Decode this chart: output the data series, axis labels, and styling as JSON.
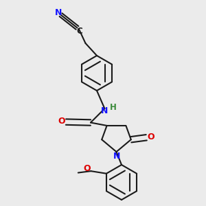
{
  "background_color": "#ebebeb",
  "bond_color": "#1a1a1a",
  "nitrogen_color": "#1414ff",
  "oxygen_color": "#dd0000",
  "hydrogen_color": "#3a8a3a",
  "line_width": 1.5,
  "figsize": [
    3.0,
    3.0
  ],
  "dpi": 100,
  "xlim": [
    0.0,
    1.0
  ],
  "ylim": [
    0.0,
    1.0
  ]
}
